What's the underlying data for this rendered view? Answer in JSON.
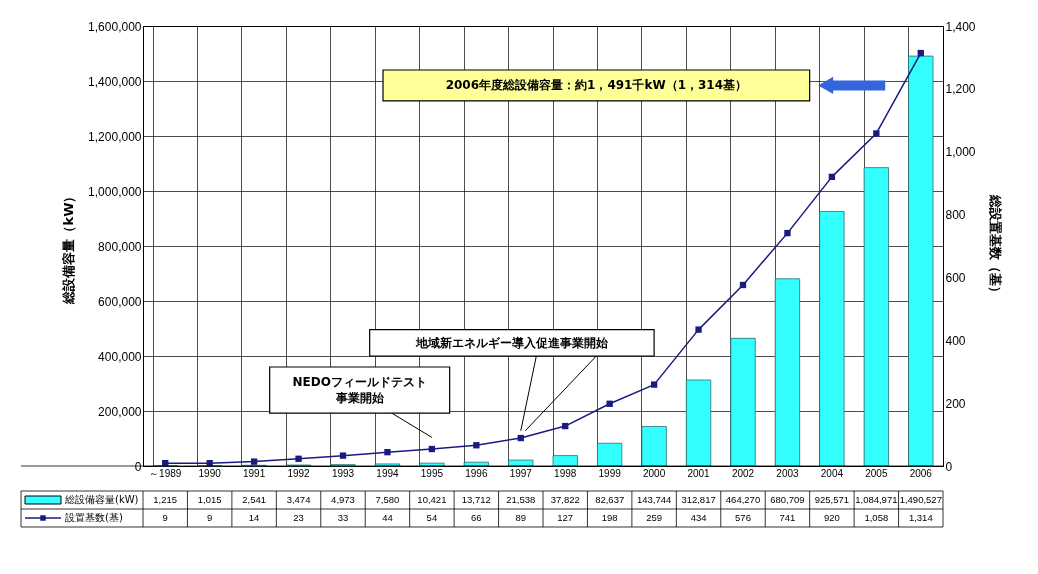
{
  "chart_data": {
    "type": "bar",
    "categories": [
      "～1989",
      "1990",
      "1991",
      "1992",
      "1993",
      "1994",
      "1995",
      "1996",
      "1997",
      "1998",
      "1999",
      "2000",
      "2001",
      "2002",
      "2003",
      "2004",
      "2005",
      "2006"
    ],
    "series": [
      {
        "name": "総設備容量(kW)",
        "color": "#33ffff",
        "values": [
          1215,
          1015,
          2541,
          3474,
          4973,
          7580,
          10421,
          13712,
          21538,
          37822,
          82637,
          143744,
          312817,
          464270,
          680709,
          925571,
          1084971,
          1490527
        ],
        "value_labels": [
          "1,215",
          "1,015",
          "2,541",
          "3,474",
          "4,973",
          "7,580",
          "10,421",
          "13,712",
          "21,538",
          "37,822",
          "82,637",
          "143,744",
          "312,817",
          "464,270",
          "680,709",
          "925,571",
          "1,084,971",
          "1,490,527"
        ]
      },
      {
        "name": "設置基数(基)",
        "type": "line",
        "axis": "y2",
        "color": "#1a1a80",
        "marker": "square",
        "values": [
          9,
          9,
          14,
          23,
          33,
          44,
          54,
          66,
          89,
          127,
          198,
          259,
          434,
          576,
          741,
          920,
          1058,
          1314
        ],
        "value_labels": [
          "9",
          "9",
          "14",
          "23",
          "33",
          "44",
          "54",
          "66",
          "89",
          "127",
          "198",
          "259",
          "434",
          "576",
          "741",
          "920",
          "1,058",
          "1,314"
        ]
      }
    ],
    "ylabel": "総設備容量（kW）",
    "y2label": "総設置基数（基）",
    "ylim": [
      0,
      1600000
    ],
    "yticks": [
      0,
      {
        "value": 200000,
        "label": "200,000"
      },
      {
        "value": 400000,
        "label": "400,000"
      },
      {
        "value": 600000,
        "label": "600,000"
      },
      {
        "value": 800000,
        "label": "800,000"
      },
      {
        "value": 1000000,
        "label": "1,000,000"
      },
      {
        "value": 1200000,
        "label": "1,200,000"
      },
      {
        "value": 1400000,
        "label": "1,400,000"
      },
      {
        "value": 1600000,
        "label": "1,600,000"
      }
    ],
    "y2lim": [
      0,
      1400
    ],
    "y2ticks": [
      0,
      200,
      400,
      600,
      800,
      {
        "value": 1000,
        "label": "1,000"
      },
      {
        "value": 1200,
        "label": "1,200"
      },
      {
        "value": 1400,
        "label": "1,400"
      }
    ],
    "annotations": [
      "NEDOフィールドテスト事業開始",
      "地域新エネルギー導入促進事業開始",
      "2006年度総設備容量：約1，491千kW（1，314基）"
    ],
    "grid": true,
    "legend": "bottom"
  }
}
